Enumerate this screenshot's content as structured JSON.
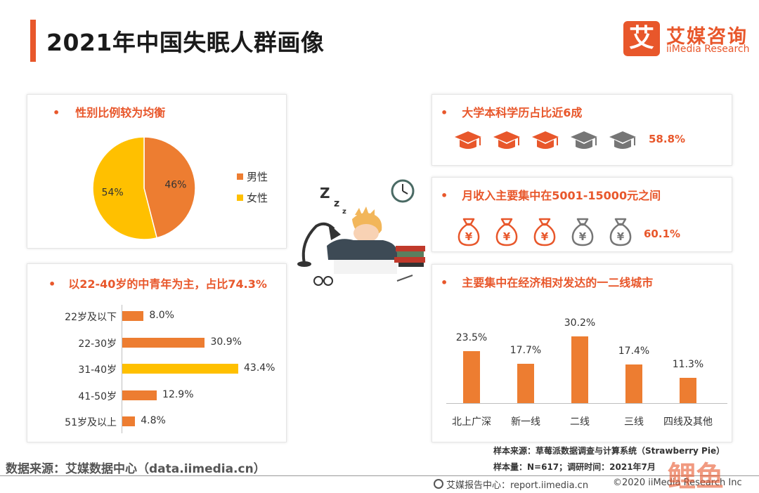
{
  "header": {
    "title": "2021年中国失眠人群画像",
    "logo_mark": "艾",
    "logo_cn": "艾媒咨询",
    "logo_en": "iiMedia Research"
  },
  "colors": {
    "accent": "#e8572b",
    "bar": "#ed7d31",
    "highlight": "#ffc000",
    "gray": "#767676"
  },
  "gender": {
    "title": "性别比例较为均衡",
    "bullet": "•",
    "legend": [
      "男性",
      "女性"
    ]
  },
  "age": {
    "title": "以22-40岁的中青年为主，占比74.3%",
    "bullet": "•"
  },
  "education": {
    "title": "大学本科学历占比近6成",
    "bullet": "•",
    "percent": "58.8%",
    "icons_filled": 3,
    "icons_total": 5
  },
  "income": {
    "title": "月收入主要集中在5001-15000元之间",
    "bullet": "•",
    "percent": "60.1%",
    "icons_filled": 3,
    "icons_total": 5,
    "icon_glyph": "¥"
  },
  "city": {
    "title": "主要集中在经济相对发达的一二线城市",
    "bullet": "•"
  },
  "chart_data": [
    {
      "type": "pie",
      "categories": [
        "男性",
        "女性"
      ],
      "values": [
        46,
        54
      ],
      "labels": [
        "46%",
        "54%"
      ],
      "colors": [
        "#ed7d31",
        "#ffc000"
      ],
      "legend": "right"
    },
    {
      "type": "bar",
      "orientation": "horizontal",
      "categories": [
        "22岁及以下",
        "22-30岁",
        "31-40岁",
        "41-50岁",
        "51岁及以上"
      ],
      "values": [
        8.0,
        30.9,
        43.4,
        12.9,
        4.8
      ],
      "labels": [
        "8.0%",
        "30.9%",
        "43.4%",
        "12.9%",
        "4.8%"
      ],
      "highlight_index": 2
    },
    {
      "type": "bar",
      "categories": [
        "北上广深",
        "新一线",
        "二线",
        "三线",
        "四线及其他"
      ],
      "values": [
        23.5,
        17.7,
        30.2,
        17.4,
        11.3
      ],
      "labels": [
        "23.5%",
        "17.7%",
        "30.2%",
        "17.4%",
        "11.3%"
      ]
    }
  ],
  "footer": {
    "source": "数据来源：艾媒数据中心（data.iimedia.cn）",
    "sample_source": "样本来源：草莓派数据调查与计算系统（Strawberry Pie）",
    "sample_size": "样本量：N=617；调研时间：2021年7月",
    "report": "艾媒报告中心：report.iimedia.cn",
    "copyright": "©2020  iiMedia Research  Inc",
    "watermark": "人人鲤鱼"
  }
}
